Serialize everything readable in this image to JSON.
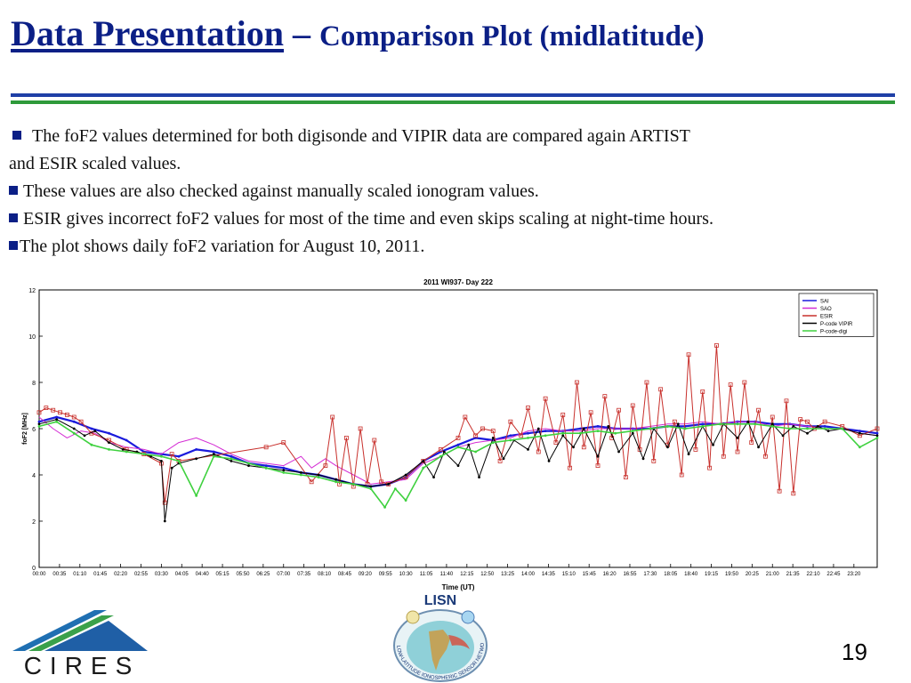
{
  "slide": {
    "title_main": "Data Presentation",
    "title_sep": " – ",
    "title_sub": "Comparison Plot (midlatitude)",
    "bullets": [
      "The foF2 values determined for both digisonde and VIPIR data are compared again ARTIST",
      "and ESIR scaled values.",
      "These values are also checked against manually scaled ionogram values.",
      "ESIR gives incorrect foF2 values for most of the time and even skips scaling at night-time hours.",
      "The plot shows daily foF2 variation for August 10, 2011."
    ],
    "page_number": "19",
    "logos": {
      "cires": "CIRES",
      "lisn": "LISN",
      "lisn_ring": "LOW-LATITUDE IONOSPHERIC SENSOR NETWORK"
    },
    "colors": {
      "title": "#0b1f86",
      "rule_blue": "#1f3fa6",
      "rule_green": "#2e9a3a"
    }
  },
  "chart_data": {
    "type": "line",
    "title": "2011 WI937- Day 222",
    "xlabel": "Time (UT)",
    "ylabel": "foF2 [MHz]",
    "ylim": [
      0,
      12
    ],
    "yticks": [
      "0",
      "2",
      "4",
      "6",
      "8",
      "10",
      "12"
    ],
    "xlim": [
      0,
      24
    ],
    "xticks": [
      "00:00",
      "00:35",
      "01:10",
      "01:45",
      "02:20",
      "02:55",
      "03:30",
      "04:05",
      "04:40",
      "05:15",
      "05:50",
      "06:25",
      "07:00",
      "07:35",
      "08:10",
      "08:45",
      "09:20",
      "09:55",
      "10:30",
      "11:05",
      "11:40",
      "12:15",
      "12:50",
      "13:25",
      "14:00",
      "14:35",
      "15:10",
      "15:45",
      "16:20",
      "16:55",
      "17:30",
      "18:05",
      "18:40",
      "19:15",
      "19:50",
      "20:25",
      "21:00",
      "21:35",
      "22:10",
      "22:45",
      "23:20"
    ],
    "legend_position": "top-right",
    "series": [
      {
        "name": "SAI",
        "color": "#1a1adc",
        "marker": "dot",
        "x": [
          0,
          0.5,
          1,
          1.5,
          2,
          2.5,
          3,
          3.5,
          4,
          4.5,
          5,
          5.5,
          6,
          6.5,
          7,
          7.5,
          8,
          8.5,
          9,
          9.5,
          10,
          10.5,
          11,
          11.5,
          12,
          12.5,
          13,
          13.5,
          14,
          14.5,
          15,
          15.5,
          16,
          16.5,
          17,
          17.5,
          18,
          18.5,
          19,
          19.5,
          20,
          20.5,
          21,
          21.5,
          22,
          22.5,
          23,
          23.5,
          24
        ],
        "values": [
          6.3,
          6.5,
          6.3,
          6.0,
          5.8,
          5.5,
          5.0,
          4.9,
          4.8,
          5.1,
          5.0,
          4.8,
          4.5,
          4.4,
          4.3,
          4.1,
          4.0,
          3.8,
          3.6,
          3.5,
          3.6,
          3.9,
          4.6,
          5.0,
          5.3,
          5.6,
          5.5,
          5.7,
          5.8,
          5.9,
          5.9,
          6.0,
          6.1,
          6.0,
          6.0,
          6.0,
          6.1,
          6.1,
          6.2,
          6.2,
          6.3,
          6.3,
          6.2,
          6.2,
          6.1,
          6.1,
          6.0,
          5.9,
          5.8
        ]
      },
      {
        "name": "SAO",
        "color": "#d42cd4",
        "marker": "none",
        "x": [
          0,
          0.4,
          0.8,
          1.2,
          1.6,
          2,
          2.5,
          3,
          3.5,
          4,
          4.5,
          5,
          5.5,
          6,
          6.5,
          7,
          7.5,
          7.8,
          8.2,
          8.5,
          9,
          9.5,
          10,
          10.5,
          11,
          11.5,
          12,
          12.5,
          13,
          13.5,
          14,
          14.5,
          15,
          15.5,
          16,
          16.5,
          17,
          17.5,
          18,
          18.5,
          19,
          19.5,
          20,
          20.5,
          21,
          21.5,
          22,
          22.5,
          23,
          23.5,
          24
        ],
        "values": [
          6.5,
          6.0,
          5.6,
          5.9,
          5.8,
          5.4,
          5.2,
          5.1,
          4.9,
          5.4,
          5.6,
          5.3,
          4.9,
          4.6,
          4.5,
          4.4,
          4.8,
          4.3,
          4.7,
          4.4,
          4.0,
          3.6,
          3.7,
          3.8,
          4.5,
          4.8,
          5.2,
          5.4,
          5.5,
          5.6,
          5.9,
          6.0,
          5.9,
          5.9,
          6.0,
          6.0,
          6.0,
          6.1,
          6.2,
          6.2,
          6.3,
          6.2,
          6.3,
          6.3,
          6.1,
          6.2,
          6.1,
          6.0,
          6.0,
          5.8,
          5.7
        ]
      },
      {
        "name": "ESIR",
        "color": "#c8302c",
        "marker": "square",
        "x": [
          0,
          0.2,
          0.4,
          0.6,
          0.8,
          1,
          1.2,
          1.5,
          2,
          2.5,
          3,
          3.5,
          3.6,
          3.8,
          4,
          6.5,
          7,
          7.8,
          8.2,
          8.4,
          8.6,
          8.8,
          9,
          9.2,
          9.4,
          9.6,
          9.8,
          10,
          10.5,
          11,
          11.5,
          12,
          12.2,
          12.5,
          12.7,
          13,
          13.2,
          13.5,
          13.8,
          14,
          14.3,
          14.5,
          14.8,
          15,
          15.2,
          15.4,
          15.6,
          15.8,
          16,
          16.2,
          16.4,
          16.6,
          16.8,
          17,
          17.2,
          17.4,
          17.6,
          17.8,
          18,
          18.2,
          18.4,
          18.6,
          18.8,
          19,
          19.2,
          19.4,
          19.6,
          19.8,
          20,
          20.2,
          20.4,
          20.6,
          20.8,
          21,
          21.2,
          21.4,
          21.6,
          21.8,
          22,
          22.2,
          22.5,
          23,
          23.5,
          24
        ],
        "values": [
          6.7,
          6.9,
          6.8,
          6.7,
          6.6,
          6.5,
          6.3,
          5.8,
          5.5,
          5.1,
          4.9,
          4.5,
          2.8,
          4.9,
          4.6,
          5.2,
          5.4,
          3.7,
          4.4,
          6.5,
          3.6,
          5.6,
          3.5,
          6.0,
          3.6,
          5.5,
          3.7,
          3.6,
          3.9,
          4.6,
          5.1,
          5.6,
          6.5,
          5.7,
          6.0,
          5.9,
          4.6,
          6.3,
          5.7,
          6.9,
          5.0,
          7.3,
          5.4,
          6.6,
          4.3,
          8.0,
          5.2,
          6.7,
          4.4,
          7.4,
          5.6,
          6.8,
          3.9,
          7.0,
          5.1,
          8.0,
          4.6,
          7.7,
          5.3,
          6.3,
          4.0,
          9.2,
          5.1,
          7.6,
          4.3,
          9.6,
          4.8,
          7.9,
          5.0,
          8.0,
          5.4,
          6.8,
          4.8,
          6.5,
          3.3,
          7.2,
          3.2,
          6.4,
          6.3,
          6.0,
          6.3,
          6.1,
          5.7,
          6.0
        ]
      },
      {
        "name": "P-code VIPIR",
        "color": "#000000",
        "marker": "dot",
        "x": [
          0,
          0.5,
          1,
          1.3,
          1.6,
          2,
          2.4,
          2.8,
          3.2,
          3.5,
          3.6,
          3.8,
          4,
          4.5,
          5,
          5.5,
          6,
          6.5,
          7,
          7.5,
          8,
          8.5,
          9,
          9.5,
          10,
          10.5,
          11,
          11.3,
          11.6,
          12,
          12.3,
          12.6,
          13,
          13.3,
          13.6,
          14,
          14.3,
          14.6,
          15,
          15.3,
          15.6,
          16,
          16.3,
          16.6,
          17,
          17.3,
          17.6,
          18,
          18.3,
          18.6,
          19,
          19.3,
          19.6,
          20,
          20.3,
          20.6,
          21,
          21.3,
          21.6,
          22,
          22.3,
          22.6,
          23,
          23.5,
          24
        ],
        "values": [
          6.2,
          6.4,
          6.0,
          5.7,
          5.9,
          5.4,
          5.1,
          5.0,
          4.8,
          4.6,
          2.0,
          4.3,
          4.5,
          4.7,
          4.9,
          4.6,
          4.4,
          4.3,
          4.2,
          4.1,
          4.0,
          3.8,
          3.6,
          3.5,
          3.6,
          4.0,
          4.6,
          3.9,
          5.0,
          4.4,
          5.3,
          3.9,
          5.6,
          4.7,
          5.5,
          5.1,
          6.0,
          4.6,
          5.7,
          5.2,
          6.0,
          4.8,
          6.1,
          5.0,
          5.8,
          4.7,
          6.0,
          5.2,
          6.2,
          4.9,
          6.1,
          5.3,
          6.2,
          5.6,
          6.3,
          5.2,
          6.2,
          5.7,
          6.1,
          5.8,
          6.1,
          5.9,
          6.0,
          5.8,
          5.7
        ]
      },
      {
        "name": "P-code-digi",
        "color": "#3fd13f",
        "marker": "dot",
        "x": [
          0,
          0.5,
          1,
          1.5,
          2,
          2.5,
          3,
          3.5,
          4,
          4.5,
          5,
          5.5,
          6,
          6.5,
          7,
          7.5,
          8,
          8.5,
          9,
          9.5,
          9.9,
          10.2,
          10.5,
          11,
          11.5,
          12,
          12.5,
          13,
          13.5,
          14,
          14.5,
          15,
          15.5,
          16,
          16.5,
          17,
          17.5,
          18,
          18.5,
          19,
          19.5,
          20,
          20.5,
          21,
          21.5,
          22,
          22.5,
          23,
          23.5,
          24
        ],
        "values": [
          6.1,
          6.3,
          5.8,
          5.3,
          5.1,
          5.0,
          4.9,
          4.8,
          4.6,
          3.1,
          4.8,
          4.7,
          4.5,
          4.3,
          4.1,
          4.0,
          3.9,
          3.7,
          3.6,
          3.4,
          2.6,
          3.4,
          2.9,
          4.3,
          4.8,
          5.2,
          5.0,
          5.4,
          5.5,
          5.6,
          5.7,
          5.8,
          5.8,
          5.9,
          5.8,
          5.9,
          6.0,
          6.1,
          6.0,
          6.1,
          6.2,
          6.2,
          6.2,
          6.1,
          6.0,
          6.0,
          6.0,
          6.0,
          5.2,
          5.6
        ]
      }
    ]
  }
}
